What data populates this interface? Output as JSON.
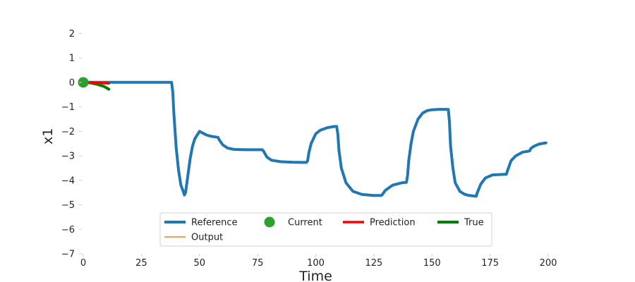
{
  "chart_data": {
    "type": "line",
    "xlabel": "Time",
    "ylabel": "x1",
    "xlim": [
      0,
      210
    ],
    "ylim": [
      -7,
      2.5
    ],
    "xticks": [
      0,
      25,
      50,
      75,
      100,
      125,
      150,
      175,
      200
    ],
    "yticks": [
      2,
      1,
      0,
      -1,
      -2,
      -3,
      -4,
      -5,
      -6,
      -7
    ],
    "xtick_labels": [
      "0",
      "25",
      "50",
      "75",
      "100",
      "125",
      "150",
      "175",
      "200"
    ],
    "ytick_labels": [
      "2",
      "1",
      "0",
      "−1",
      "−2",
      "−3",
      "−4",
      "−5",
      "−6",
      "−7"
    ],
    "grid": false,
    "legend_position": "lower center",
    "series": [
      {
        "name": "Reference",
        "color": "#1f77b4",
        "style": "line",
        "x": [
          0,
          10,
          20,
          30,
          38,
          38.5,
          39,
          40,
          41,
          42,
          43,
          43.5,
          44,
          45,
          46,
          47,
          48,
          50,
          51,
          52,
          53,
          55,
          57,
          58,
          58.5,
          60,
          62,
          65,
          70,
          75,
          77,
          77.5,
          79,
          81,
          85,
          90,
          95,
          96,
          96.5,
          97,
          98,
          100,
          102,
          105,
          108,
          109,
          109.5,
          110,
          111,
          113,
          116,
          120,
          125,
          128,
          128.5,
          130,
          133,
          137,
          139,
          139.5,
          140,
          141,
          142,
          144,
          146,
          148,
          150,
          153,
          157,
          157.5,
          158,
          159,
          160,
          162,
          164,
          166,
          169,
          169.5,
          171,
          173,
          176,
          182,
          182.5,
          184,
          186,
          189,
          192,
          192.5,
          194,
          196,
          199
        ],
        "y": [
          0,
          0,
          0,
          0,
          0,
          -0.4,
          -1.3,
          -2.7,
          -3.6,
          -4.2,
          -4.45,
          -4.6,
          -4.5,
          -3.8,
          -3.1,
          -2.6,
          -2.3,
          -2.0,
          -2.05,
          -2.1,
          -2.15,
          -2.2,
          -2.23,
          -2.25,
          -2.35,
          -2.55,
          -2.68,
          -2.74,
          -2.75,
          -2.75,
          -2.75,
          -2.8,
          -3.05,
          -3.18,
          -3.24,
          -3.26,
          -3.27,
          -3.27,
          -3.2,
          -2.9,
          -2.5,
          -2.1,
          -1.95,
          -1.85,
          -1.8,
          -1.8,
          -2.1,
          -2.8,
          -3.5,
          -4.1,
          -4.45,
          -4.58,
          -4.62,
          -4.62,
          -4.6,
          -4.4,
          -4.2,
          -4.1,
          -4.08,
          -3.8,
          -3.2,
          -2.5,
          -2.0,
          -1.5,
          -1.25,
          -1.15,
          -1.12,
          -1.1,
          -1.1,
          -1.6,
          -2.6,
          -3.5,
          -4.1,
          -4.45,
          -4.57,
          -4.62,
          -4.65,
          -4.5,
          -4.15,
          -3.9,
          -3.78,
          -3.75,
          -3.6,
          -3.2,
          -3.0,
          -2.85,
          -2.8,
          -2.7,
          -2.6,
          -2.52,
          -2.47
        ]
      },
      {
        "name": "Current",
        "color": "#2ca02c",
        "style": "marker",
        "x": [
          0
        ],
        "y": [
          0
        ]
      },
      {
        "name": "Prediction",
        "color": "#ff0000",
        "style": "line",
        "x": [
          0,
          3,
          6,
          9,
          11
        ],
        "y": [
          0,
          0.0,
          -0.02,
          -0.03,
          -0.04
        ]
      },
      {
        "name": "True",
        "color": "#008000",
        "style": "line",
        "x": [
          0,
          3,
          6,
          9,
          11
        ],
        "y": [
          0,
          -0.02,
          -0.08,
          -0.17,
          -0.28
        ]
      },
      {
        "name": "Output",
        "color": "#ff7f0e",
        "style": "line",
        "x": [],
        "y": []
      }
    ]
  }
}
